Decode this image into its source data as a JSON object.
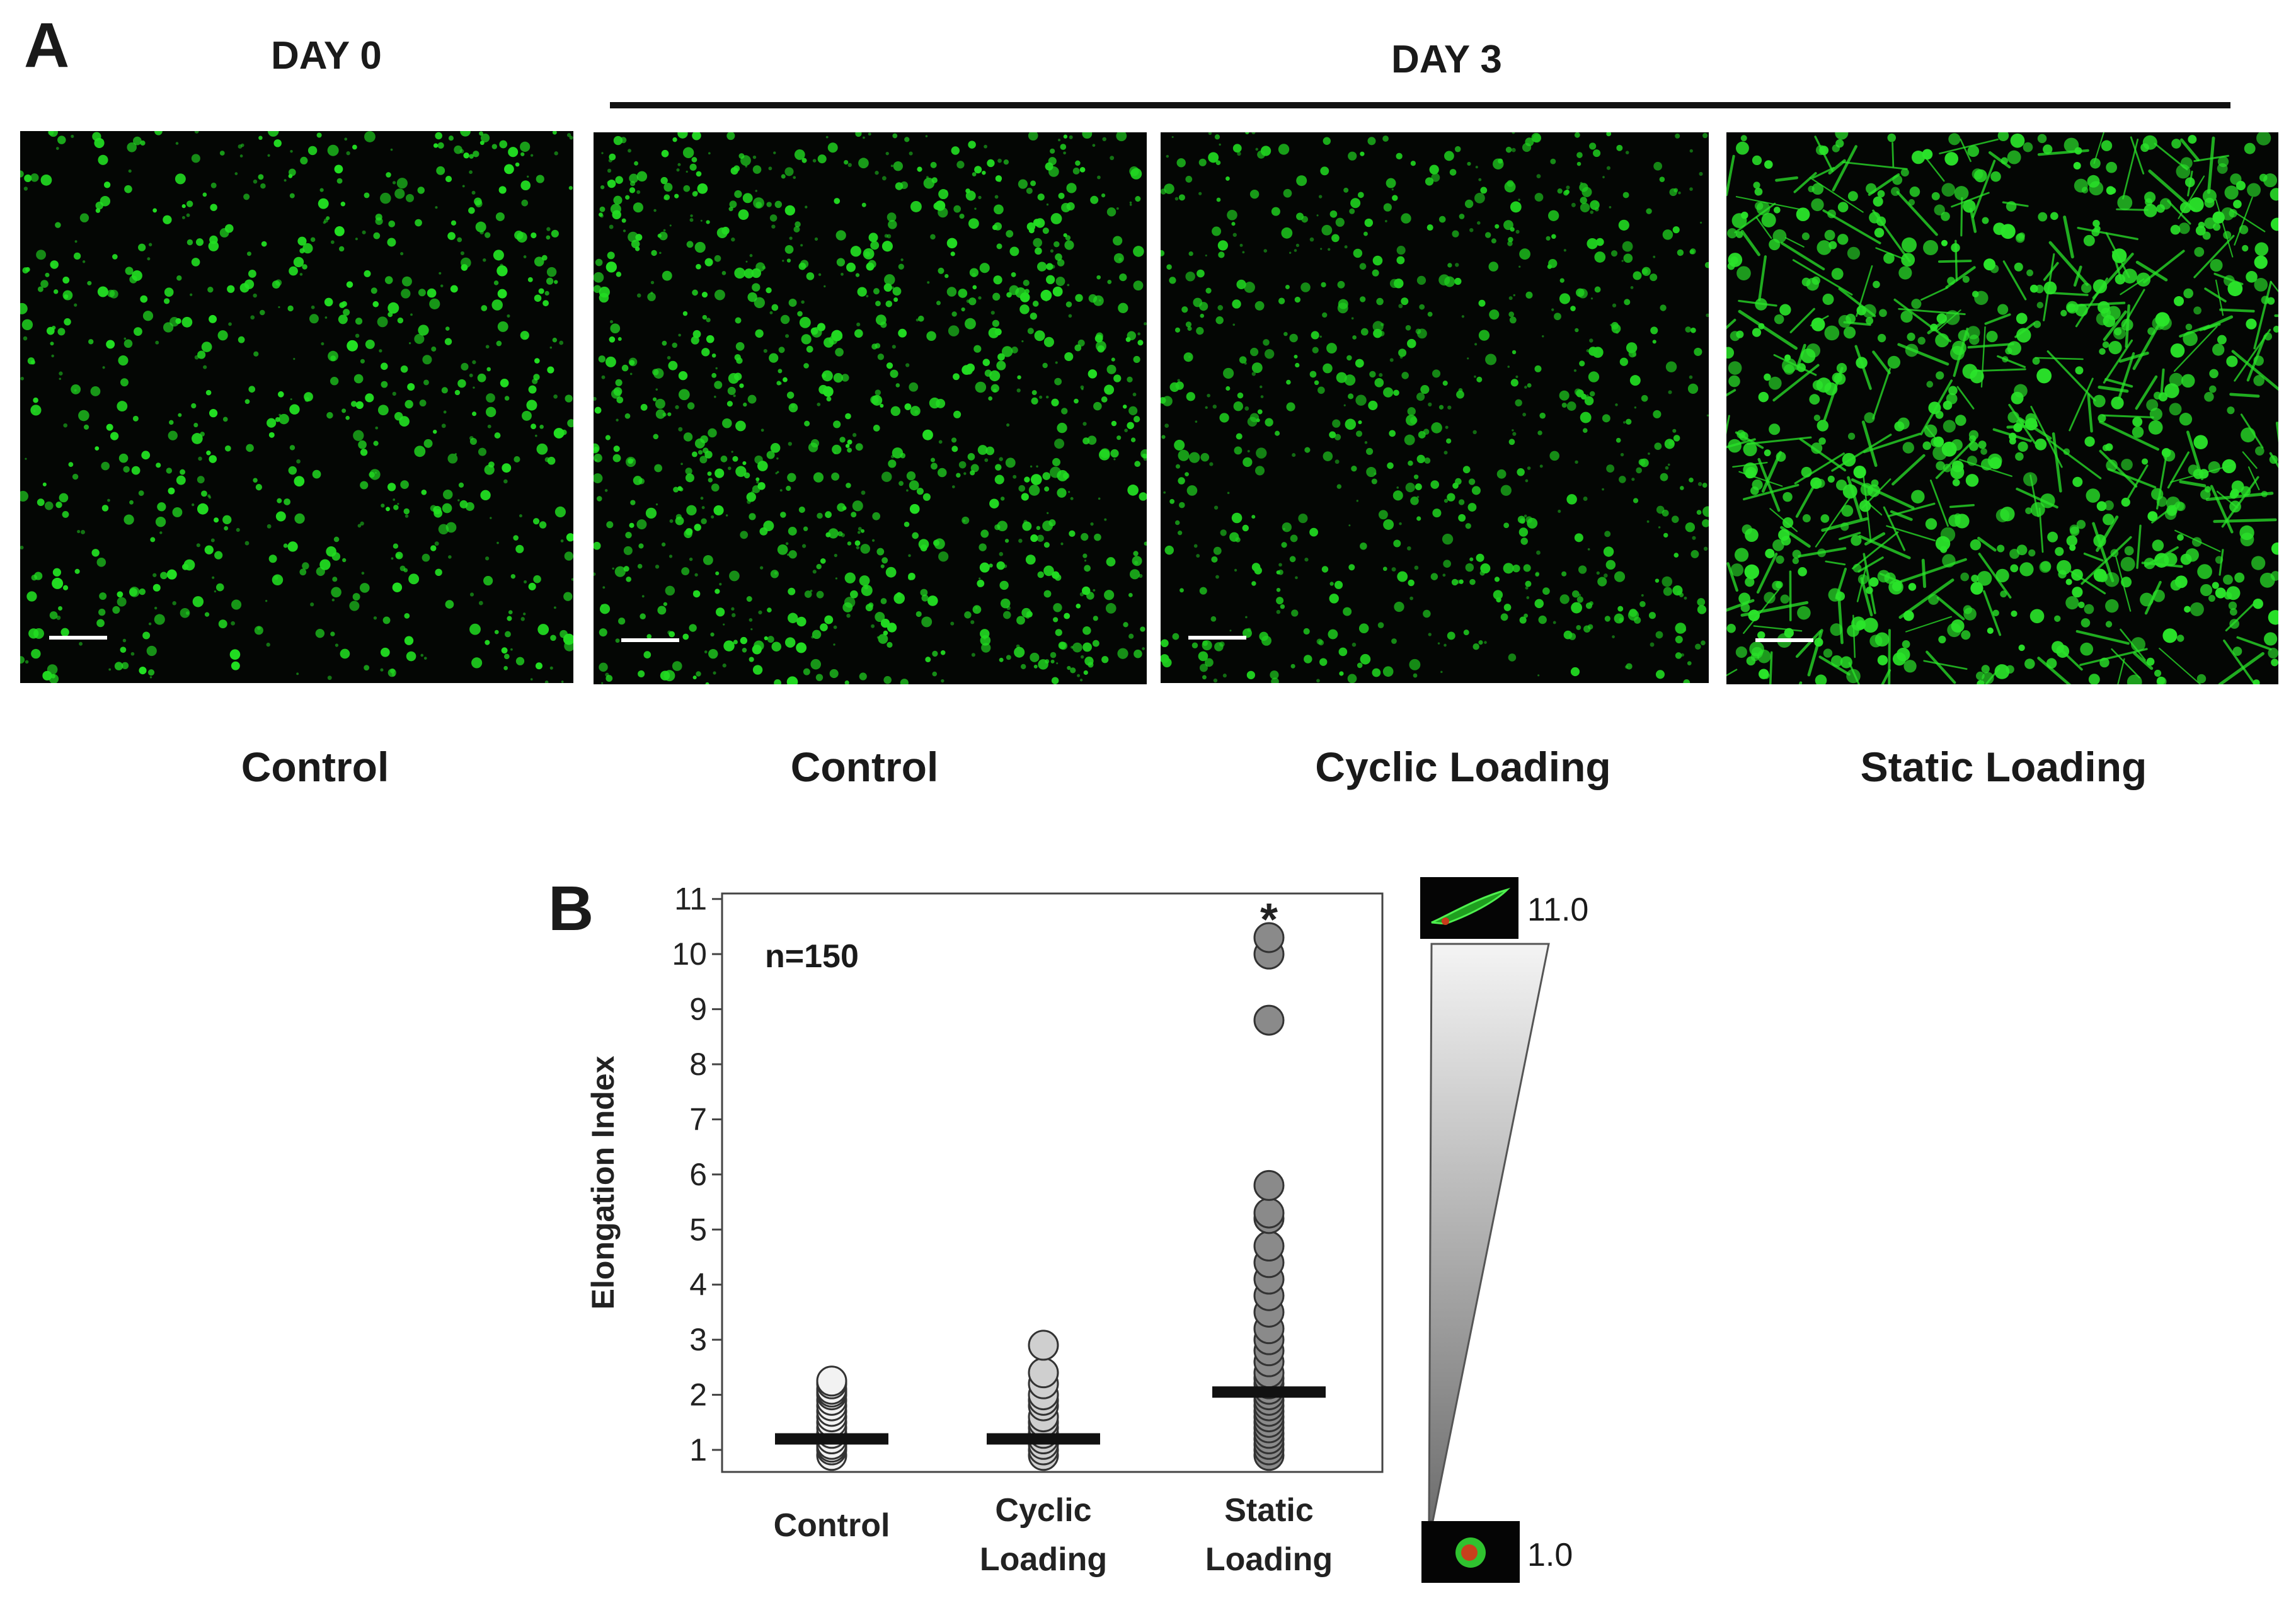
{
  "panel_a": {
    "letter": "A",
    "day0_label": "DAY 0",
    "day3_label": "DAY 3",
    "images": [
      {
        "caption": "Control",
        "cell_color": "#22e022",
        "density": 520,
        "elongated": false
      },
      {
        "caption": "Control",
        "cell_color": "#22dc22",
        "density": 760,
        "elongated": false
      },
      {
        "caption": "Cyclic Loading",
        "cell_color": "#1fcf1f",
        "density": 560,
        "elongated": false
      },
      {
        "caption": "Static Loading",
        "cell_color": "#2ae42a",
        "density": 620,
        "elongated": true
      }
    ]
  },
  "panel_b": {
    "letter": "B",
    "n_label": "n=150",
    "significance_marker": "*",
    "scale_top_label": "11.0",
    "scale_bottom_label": "1.0"
  },
  "chart_data": {
    "type": "scatter",
    "ylabel": "Elongation Index",
    "ylim": [
      0.6,
      11.1
    ],
    "yticks": [
      1,
      2,
      3,
      4,
      5,
      6,
      7,
      8,
      9,
      10,
      11
    ],
    "categories": [
      "Control",
      "Cyclic\nLoading",
      "Static\nLoading"
    ],
    "series": [
      {
        "category": "Control",
        "fill": "#f2f2f2",
        "median": 1.2,
        "values": [
          0.9,
          1.0,
          1.05,
          1.1,
          1.2,
          1.3,
          1.4,
          1.5,
          1.6,
          1.7,
          1.8,
          1.9,
          2.0,
          2.05,
          2.1,
          2.2,
          2.25
        ]
      },
      {
        "category": "Cyclic Loading",
        "fill": "#cfcfcf",
        "median": 1.2,
        "values": [
          0.9,
          1.0,
          1.1,
          1.2,
          1.3,
          1.4,
          1.5,
          1.6,
          1.8,
          1.9,
          2.0,
          2.2,
          2.4,
          2.9
        ]
      },
      {
        "category": "Static Loading",
        "fill": "#8a8a8a",
        "median": 2.05,
        "values": [
          0.9,
          1.0,
          1.1,
          1.2,
          1.3,
          1.4,
          1.5,
          1.6,
          1.7,
          1.8,
          1.9,
          2.0,
          2.1,
          2.2,
          2.3,
          2.4,
          2.6,
          2.8,
          3.0,
          3.2,
          3.5,
          3.8,
          4.1,
          4.4,
          4.7,
          5.2,
          5.3,
          5.8,
          8.8,
          10.0,
          10.3
        ]
      }
    ]
  }
}
